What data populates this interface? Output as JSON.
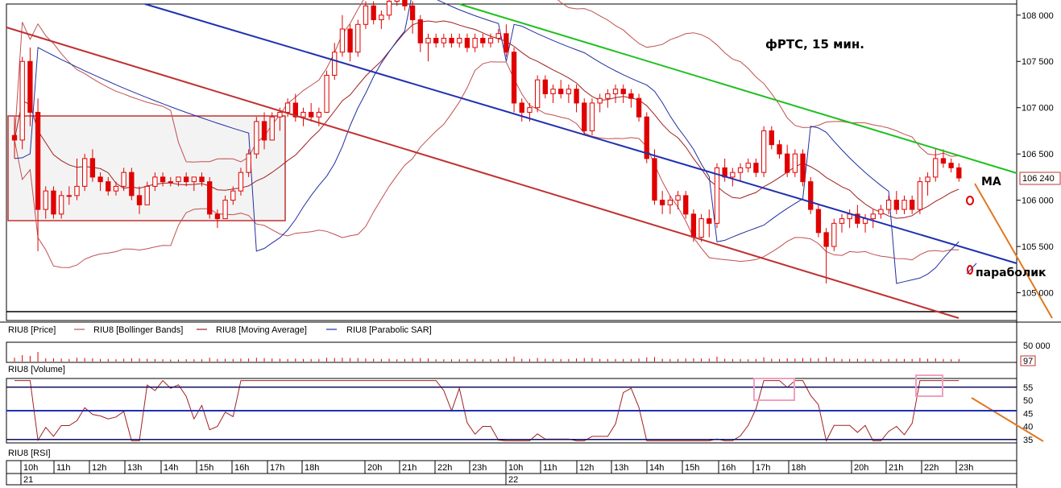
{
  "chart_data": {
    "type": "candlestick",
    "instrument": "RIU8",
    "title": "фРТС, 15 мин.",
    "price_axis": {
      "ticks": [
        "108 000",
        "107 500",
        "107 000",
        "106 500",
        "106 000",
        "105 500",
        "105 000"
      ],
      "tick_values": [
        108000,
        107500,
        107000,
        106500,
        106000,
        105500,
        105000
      ],
      "ylim": [
        104700,
        108120
      ]
    },
    "current_price": {
      "value": 106240,
      "label": "106 240"
    },
    "legend": [
      "RIU8 [Price]",
      "RIU8 [Bollinger Bands]",
      "RIU8 [Moving Average]",
      "RIU8 [Parabolic SAR]"
    ],
    "annotations": {
      "ma": "MA",
      "parabolic": "параболик"
    },
    "time_axis": {
      "hours": [
        "10h",
        "11h",
        "12h",
        "13h",
        "14h",
        "15h",
        "16h",
        "17h",
        "18h",
        "20h",
        "21h",
        "22h",
        "23h",
        "10h",
        "11h",
        "12h",
        "13h",
        "14h",
        "15h",
        "16h",
        "17h",
        "18h",
        "20h",
        "21h",
        "22h",
        "23h"
      ],
      "days": [
        "21",
        "22"
      ]
    },
    "candles": [
      [
        106700,
        106900,
        106450,
        106650
      ],
      [
        106650,
        107550,
        106550,
        107500
      ],
      [
        107500,
        107650,
        106800,
        106950
      ],
      [
        106950,
        107100,
        105450,
        105900
      ],
      [
        105900,
        106150,
        105800,
        106100
      ],
      [
        106100,
        106150,
        105800,
        105850
      ],
      [
        105850,
        106100,
        105800,
        106050
      ],
      [
        106050,
        106150,
        105950,
        106050
      ],
      [
        106050,
        106450,
        106000,
        106150
      ],
      [
        106150,
        106500,
        106100,
        106450
      ],
      [
        106450,
        106550,
        106200,
        106250
      ],
      [
        106250,
        106300,
        106100,
        106200
      ],
      [
        106200,
        106250,
        106050,
        106100
      ],
      [
        106100,
        106200,
        106050,
        106150
      ],
      [
        106150,
        106350,
        106100,
        106300
      ],
      [
        106300,
        106350,
        106000,
        106050
      ],
      [
        106050,
        106150,
        105850,
        105950
      ],
      [
        105950,
        106200,
        105950,
        106150
      ],
      [
        106150,
        106300,
        106100,
        106250
      ],
      [
        106250,
        106300,
        106150,
        106200
      ],
      [
        106200,
        106250,
        106150,
        106200
      ],
      [
        106200,
        106250,
        106150,
        106250
      ],
      [
        106250,
        106300,
        106150,
        106200
      ],
      [
        106200,
        106250,
        106100,
        106250
      ],
      [
        106250,
        106300,
        106150,
        106200
      ],
      [
        106200,
        106250,
        105800,
        105850
      ],
      [
        105850,
        105900,
        105700,
        105800
      ],
      [
        105800,
        106050,
        105800,
        106000
      ],
      [
        106000,
        106150,
        105950,
        106100
      ],
      [
        106100,
        106350,
        106050,
        106300
      ],
      [
        106300,
        106550,
        106250,
        106500
      ],
      [
        106500,
        106900,
        106450,
        106850
      ],
      [
        106850,
        106950,
        106550,
        106650
      ],
      [
        106650,
        106950,
        106650,
        106900
      ],
      [
        106900,
        107000,
        106750,
        106950
      ],
      [
        106950,
        107100,
        106900,
        107050
      ],
      [
        107050,
        107150,
        106850,
        106900
      ],
      [
        106900,
        107000,
        106800,
        106950
      ],
      [
        106950,
        107050,
        106850,
        106900
      ],
      [
        106900,
        107000,
        106800,
        106950
      ],
      [
        106950,
        107400,
        106950,
        107350
      ],
      [
        107350,
        107700,
        107300,
        107600
      ],
      [
        107600,
        108000,
        107550,
        107850
      ],
      [
        107850,
        107900,
        107500,
        107600
      ],
      [
        107600,
        107950,
        107550,
        107900
      ],
      [
        107900,
        108150,
        107850,
        108100
      ],
      [
        108100,
        108150,
        107900,
        107950
      ],
      [
        107950,
        108050,
        107850,
        108000
      ],
      [
        108000,
        108200,
        107950,
        108150
      ],
      [
        108150,
        108250,
        108100,
        108200
      ],
      [
        108200,
        108250,
        108050,
        108100
      ],
      [
        108100,
        108150,
        107800,
        107950
      ],
      [
        107950,
        108000,
        107600,
        107700
      ],
      [
        107700,
        107800,
        107500,
        107750
      ],
      [
        107750,
        107800,
        107650,
        107700
      ],
      [
        107700,
        107800,
        107650,
        107750
      ],
      [
        107750,
        107800,
        107650,
        107700
      ],
      [
        107700,
        107800,
        107650,
        107750
      ],
      [
        107750,
        107800,
        107600,
        107650
      ],
      [
        107650,
        107800,
        107600,
        107750
      ],
      [
        107750,
        107800,
        107650,
        107700
      ],
      [
        107700,
        107800,
        107650,
        107750
      ],
      [
        107750,
        107850,
        107700,
        107800
      ],
      [
        107800,
        107900,
        107550,
        107600
      ],
      [
        107600,
        107650,
        106950,
        107050
      ],
      [
        107050,
        107100,
        106850,
        106950
      ],
      [
        106950,
        107050,
        106850,
        107000
      ],
      [
        107000,
        107350,
        106950,
        107300
      ],
      [
        107300,
        107350,
        107100,
        107150
      ],
      [
        107150,
        107250,
        107050,
        107200
      ],
      [
        107200,
        107300,
        107100,
        107150
      ],
      [
        107150,
        107250,
        107050,
        107200
      ],
      [
        107200,
        107250,
        106950,
        107050
      ],
      [
        107050,
        107100,
        106700,
        106750
      ],
      [
        106750,
        107100,
        106700,
        107050
      ],
      [
        107050,
        107150,
        106950,
        107100
      ],
      [
        107100,
        107200,
        107000,
        107150
      ],
      [
        107150,
        107250,
        107050,
        107200
      ],
      [
        107200,
        107250,
        107050,
        107150
      ],
      [
        107150,
        107200,
        107000,
        107100
      ],
      [
        107100,
        107150,
        106850,
        106900
      ],
      [
        106900,
        106950,
        106400,
        106450
      ],
      [
        106450,
        106550,
        105950,
        106000
      ],
      [
        106000,
        106100,
        105850,
        105950
      ],
      [
        105950,
        106050,
        105850,
        106000
      ],
      [
        106000,
        106100,
        105900,
        106050
      ],
      [
        106050,
        106100,
        105800,
        105850
      ],
      [
        105850,
        105900,
        105550,
        105600
      ],
      [
        105600,
        105850,
        105550,
        105800
      ],
      [
        105800,
        105900,
        105600,
        105750
      ],
      [
        105750,
        106400,
        105700,
        106350
      ],
      [
        106350,
        106450,
        106200,
        106250
      ],
      [
        106250,
        106350,
        106150,
        106300
      ],
      [
        106300,
        106400,
        106200,
        106350
      ],
      [
        106350,
        106450,
        106300,
        106400
      ],
      [
        106400,
        106450,
        106250,
        106300
      ],
      [
        106300,
        106800,
        106250,
        106750
      ],
      [
        106750,
        106800,
        106550,
        106600
      ],
      [
        106600,
        106650,
        106450,
        106500
      ],
      [
        106500,
        106600,
        106250,
        106300
      ],
      [
        106300,
        106550,
        106250,
        106500
      ],
      [
        106500,
        106550,
        106150,
        106200
      ],
      [
        106200,
        106250,
        105850,
        105900
      ],
      [
        105900,
        105950,
        105600,
        105650
      ],
      [
        105650,
        105700,
        105100,
        105500
      ],
      [
        105500,
        105800,
        105450,
        105750
      ],
      [
        105750,
        105850,
        105650,
        105800
      ],
      [
        105800,
        105900,
        105700,
        105850
      ],
      [
        105850,
        105950,
        105700,
        105750
      ],
      [
        105750,
        105850,
        105650,
        105800
      ],
      [
        105800,
        105900,
        105700,
        105850
      ],
      [
        105850,
        105950,
        105800,
        105900
      ],
      [
        105900,
        106050,
        105850,
        106000
      ],
      [
        106000,
        106100,
        105850,
        105900
      ],
      [
        105900,
        106050,
        105850,
        106000
      ],
      [
        106000,
        106050,
        105850,
        105900
      ],
      [
        105900,
        106250,
        105850,
        106200
      ],
      [
        106200,
        106300,
        106050,
        106250
      ],
      [
        106250,
        106550,
        106200,
        106450
      ],
      [
        106450,
        106550,
        106350,
        106400
      ],
      [
        106400,
        106450,
        106300,
        106350
      ],
      [
        106350,
        106400,
        106200,
        106240
      ]
    ],
    "rsi": {
      "ylim": [
        34,
        58
      ],
      "ticks": [
        55,
        50,
        45,
        40,
        35
      ],
      "upper_level": 55,
      "mid_level": 46,
      "lower_level": 35
    },
    "volume": {
      "ticks": [
        "50 000"
      ],
      "current_label": "97"
    }
  },
  "panels": {
    "price_label": "RIU8 [Price]",
    "volume_label": "RIU8 [Volume]",
    "rsi_label": "RIU8 [RSI]"
  },
  "colors": {
    "up": "#ffffff",
    "down": "#e00000",
    "bollinger": "#c05050",
    "ma": "#a02020",
    "sar": "#2030a0",
    "channel_red": "#c03030",
    "channel_blue": "#2030b0",
    "channel_green": "#20c020",
    "annot_orange": "#e07820",
    "box_fill": "#f3f3f3"
  }
}
